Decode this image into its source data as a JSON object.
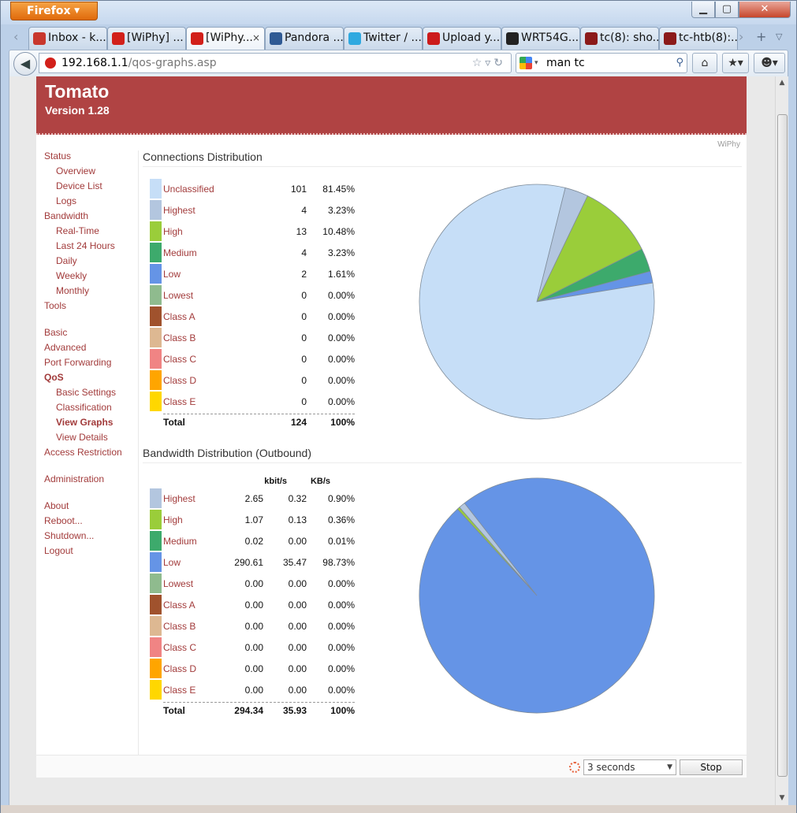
{
  "browser": {
    "menu_label": "Firefox",
    "tabs": [
      {
        "label": "Inbox - k...",
        "icon": "gmail-icon",
        "active": false
      },
      {
        "label": "[WiPhy] ...",
        "icon": "tomato-icon",
        "active": false
      },
      {
        "label": "[WiPhy...",
        "icon": "tomato-icon",
        "active": true
      },
      {
        "label": "Pandora ...",
        "icon": "pandora-icon",
        "active": false
      },
      {
        "label": "Twitter / ...",
        "icon": "twitter-icon",
        "active": false
      },
      {
        "label": "Upload y...",
        "icon": "youtube-icon",
        "active": false
      },
      {
        "label": "WRT54G...",
        "icon": "github-icon",
        "active": false
      },
      {
        "label": "tc(8): sho...",
        "icon": "manpage-icon",
        "active": false
      },
      {
        "label": "tc-htb(8):...",
        "icon": "manpage-icon",
        "active": false
      }
    ],
    "url_host": "192.168.1.1",
    "url_path": "/qos-graphs.asp",
    "search_value": "man tc"
  },
  "header": {
    "title": "Tomato",
    "version": "Version 1.28"
  },
  "router_name": "WiPhy",
  "sidebar": [
    {
      "label": "Status",
      "level": 0,
      "active": false
    },
    {
      "label": "Overview",
      "level": 1,
      "active": false
    },
    {
      "label": "Device List",
      "level": 1,
      "active": false
    },
    {
      "label": "Logs",
      "level": 1,
      "active": false
    },
    {
      "label": "Bandwidth",
      "level": 0,
      "active": false
    },
    {
      "label": "Real-Time",
      "level": 1,
      "active": false
    },
    {
      "label": "Last 24 Hours",
      "level": 1,
      "active": false
    },
    {
      "label": "Daily",
      "level": 1,
      "active": false
    },
    {
      "label": "Weekly",
      "level": 1,
      "active": false
    },
    {
      "label": "Monthly",
      "level": 1,
      "active": false
    },
    {
      "label": "Tools",
      "level": 0,
      "active": false
    },
    {
      "label": "Basic",
      "level": 0,
      "active": false
    },
    {
      "label": "Advanced",
      "level": 0,
      "active": false
    },
    {
      "label": "Port Forwarding",
      "level": 0,
      "active": false
    },
    {
      "label": "QoS",
      "level": 0,
      "active": true
    },
    {
      "label": "Basic Settings",
      "level": 1,
      "active": false
    },
    {
      "label": "Classification",
      "level": 1,
      "active": false
    },
    {
      "label": "View Graphs",
      "level": 1,
      "active": true
    },
    {
      "label": "View Details",
      "level": 1,
      "active": false
    },
    {
      "label": "Access Restriction",
      "level": 0,
      "active": false
    },
    {
      "label": "Administration",
      "level": 0,
      "active": false
    },
    {
      "label": "About",
      "level": 0,
      "active": false
    },
    {
      "label": "Reboot...",
      "level": 0,
      "active": false
    },
    {
      "label": "Shutdown...",
      "level": 0,
      "active": false
    },
    {
      "label": "Logout",
      "level": 0,
      "active": false
    }
  ],
  "colors": {
    "Unclassified": "#c6def7",
    "Highest": "#b3c6df",
    "High": "#9acd3a",
    "Medium": "#3daa6c",
    "Low": "#6594e6",
    "Lowest": "#8fbb8e",
    "Class A": "#a0522d",
    "Class B": "#ddb892",
    "Class C": "#f08484",
    "Class D": "#ffa500",
    "Class E": "#ffd700"
  },
  "connections": {
    "title": "Connections Distribution",
    "rows": [
      {
        "name": "Unclassified",
        "count": "101",
        "percent": "81.45%"
      },
      {
        "name": "Highest",
        "count": "4",
        "percent": "3.23%"
      },
      {
        "name": "High",
        "count": "13",
        "percent": "10.48%"
      },
      {
        "name": "Medium",
        "count": "4",
        "percent": "3.23%"
      },
      {
        "name": "Low",
        "count": "2",
        "percent": "1.61%"
      },
      {
        "name": "Lowest",
        "count": "0",
        "percent": "0.00%"
      },
      {
        "name": "Class A",
        "count": "0",
        "percent": "0.00%"
      },
      {
        "name": "Class B",
        "count": "0",
        "percent": "0.00%"
      },
      {
        "name": "Class C",
        "count": "0",
        "percent": "0.00%"
      },
      {
        "name": "Class D",
        "count": "0",
        "percent": "0.00%"
      },
      {
        "name": "Class E",
        "count": "0",
        "percent": "0.00%"
      }
    ],
    "total_label": "Total",
    "total_count": "124",
    "total_percent": "100%"
  },
  "bandwidth": {
    "title": "Bandwidth Distribution (Outbound)",
    "col_kbits": "kbit/s",
    "col_kbs": "KB/s",
    "rows": [
      {
        "name": "Highest",
        "kbits": "2.65",
        "kbs": "0.32",
        "percent": "0.90%"
      },
      {
        "name": "High",
        "kbits": "1.07",
        "kbs": "0.13",
        "percent": "0.36%"
      },
      {
        "name": "Medium",
        "kbits": "0.02",
        "kbs": "0.00",
        "percent": "0.01%"
      },
      {
        "name": "Low",
        "kbits": "290.61",
        "kbs": "35.47",
        "percent": "98.73%"
      },
      {
        "name": "Lowest",
        "kbits": "0.00",
        "kbs": "0.00",
        "percent": "0.00%"
      },
      {
        "name": "Class A",
        "kbits": "0.00",
        "kbs": "0.00",
        "percent": "0.00%"
      },
      {
        "name": "Class B",
        "kbits": "0.00",
        "kbs": "0.00",
        "percent": "0.00%"
      },
      {
        "name": "Class C",
        "kbits": "0.00",
        "kbs": "0.00",
        "percent": "0.00%"
      },
      {
        "name": "Class D",
        "kbits": "0.00",
        "kbs": "0.00",
        "percent": "0.00%"
      },
      {
        "name": "Class E",
        "kbits": "0.00",
        "kbs": "0.00",
        "percent": "0.00%"
      }
    ],
    "total_label": "Total",
    "total_kbits": "294.34",
    "total_kbs": "35.93",
    "total_percent": "100%"
  },
  "footer": {
    "refresh_value": "3 seconds",
    "stop_label": "Stop"
  },
  "chart_data": [
    {
      "type": "pie",
      "title": "Connections Distribution",
      "categories": [
        "Unclassified",
        "Highest",
        "High",
        "Medium",
        "Low",
        "Lowest",
        "Class A",
        "Class B",
        "Class C",
        "Class D",
        "Class E"
      ],
      "values": [
        101,
        4,
        13,
        4,
        2,
        0,
        0,
        0,
        0,
        0,
        0
      ]
    },
    {
      "type": "pie",
      "title": "Bandwidth Distribution (Outbound)",
      "categories": [
        "Highest",
        "High",
        "Medium",
        "Low",
        "Lowest",
        "Class A",
        "Class B",
        "Class C",
        "Class D",
        "Class E"
      ],
      "values": [
        2.65,
        1.07,
        0.02,
        290.61,
        0,
        0,
        0,
        0,
        0,
        0
      ]
    }
  ]
}
